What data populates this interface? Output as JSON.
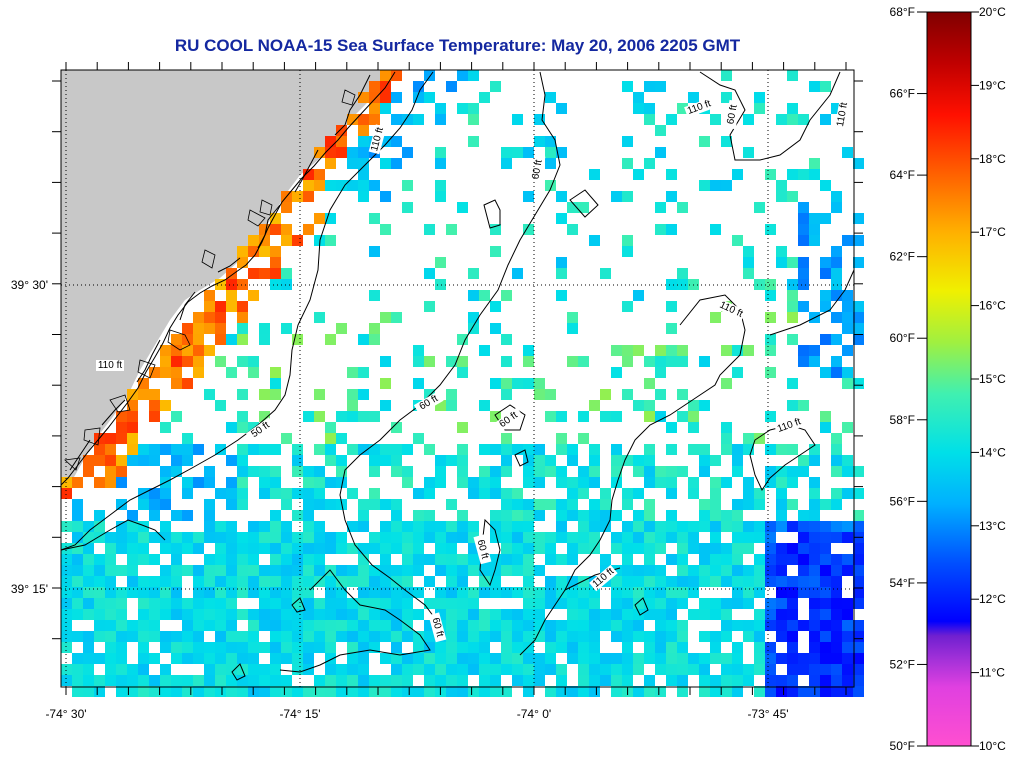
{
  "title": "RU COOL  NOAA-15  Sea Surface Temperature:  May 20, 2006 2205 GMT",
  "map": {
    "lon_ticks": [
      "-74° 30'",
      "-74° 15'",
      "-74° 0'",
      "-73° 45'"
    ],
    "lat_ticks": [
      "39° 30'",
      "39° 15'"
    ],
    "contour_labels": [
      "110 ft",
      "60 ft",
      "110 ft",
      "60 ft",
      "110 ft",
      "60 ft",
      "60 ft",
      "110 ft",
      "50 ft",
      "110 ft",
      "110 ft",
      "60 ft",
      "60 ft",
      "110 ft"
    ],
    "colors": {
      "land": "#c8c8c8",
      "coast": "#000000",
      "grid": "#000000"
    }
  },
  "colorbar": {
    "fahrenheit_labels": [
      "68°F",
      "66°F",
      "64°F",
      "62°F",
      "60°F",
      "58°F",
      "56°F",
      "54°F",
      "52°F",
      "50°F"
    ],
    "celsius_labels": [
      "20°C",
      "19°C",
      "18°C",
      "17°C",
      "16°C",
      "15°C",
      "14°C",
      "13°C",
      "12°C",
      "11°C",
      "10°C"
    ],
    "range_celsius": [
      10,
      20
    ]
  }
}
